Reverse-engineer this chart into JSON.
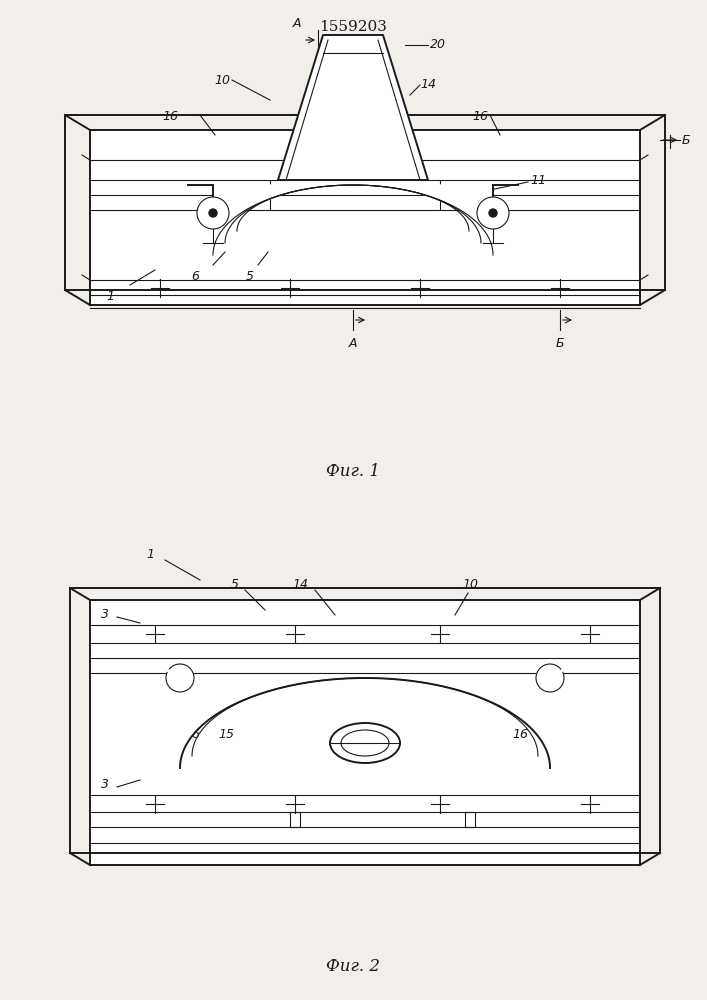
{
  "title": "1559203",
  "fig1_caption": "Фиг. 1",
  "fig2_caption": "Фиг. 2",
  "bg_color": "#f2efea",
  "line_color": "#1a1a1a",
  "lw_main": 1.4,
  "lw_thin": 0.8,
  "lw_thick": 2.0
}
